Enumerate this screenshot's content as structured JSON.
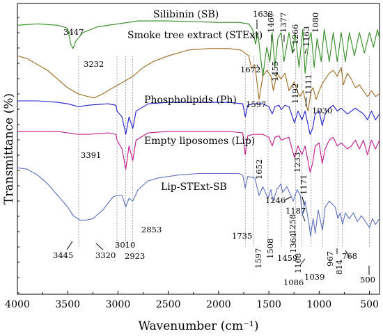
{
  "chart_data": {
    "type": "line",
    "xlabel": "Wavenumber (cm⁻¹)",
    "ylabel": "Transmittance (%)",
    "xlim": [
      4000,
      400
    ],
    "x_reversed": true,
    "xticks": [
      4000,
      3500,
      3000,
      2500,
      2000,
      1500,
      1000,
      500
    ],
    "y_tick_labels": false,
    "grid": false,
    "series": [
      {
        "name": "Silibinin (SB)",
        "color": "#2e8b1f",
        "baseline": 0.08,
        "points": [
          [
            4000,
            0.075
          ],
          [
            3800,
            0.07
          ],
          [
            3600,
            0.075
          ],
          [
            3500,
            0.085
          ],
          [
            3470,
            0.14
          ],
          [
            3447,
            0.155
          ],
          [
            3420,
            0.13
          ],
          [
            3350,
            0.1
          ],
          [
            3200,
            0.08
          ],
          [
            3000,
            0.07
          ],
          [
            2800,
            0.06
          ],
          [
            2500,
            0.06
          ],
          [
            2000,
            0.065
          ],
          [
            1800,
            0.065
          ],
          [
            1700,
            0.07
          ],
          [
            1660,
            0.09
          ],
          [
            1632,
            0.14
          ],
          [
            1610,
            0.1
          ],
          [
            1560,
            0.25
          ],
          [
            1520,
            0.15
          ],
          [
            1490,
            0.2
          ],
          [
            1467,
            0.1
          ],
          [
            1440,
            0.22
          ],
          [
            1410,
            0.12
          ],
          [
            1377,
            0.1
          ],
          [
            1350,
            0.2
          ],
          [
            1300,
            0.1
          ],
          [
            1266,
            0.17
          ],
          [
            1240,
            0.1
          ],
          [
            1200,
            0.22
          ],
          [
            1163,
            0.09
          ],
          [
            1140,
            0.24
          ],
          [
            1100,
            0.12
          ],
          [
            1080,
            0.1
          ],
          [
            1050,
            0.22
          ],
          [
            1020,
            0.12
          ],
          [
            980,
            0.2
          ],
          [
            950,
            0.09
          ],
          [
            900,
            0.2
          ],
          [
            860,
            0.1
          ],
          [
            820,
            0.2
          ],
          [
            780,
            0.1
          ],
          [
            740,
            0.2
          ],
          [
            700,
            0.1
          ],
          [
            650,
            0.18
          ],
          [
            600,
            0.1
          ],
          [
            550,
            0.17
          ],
          [
            500,
            0.1
          ],
          [
            460,
            0.15
          ],
          [
            420,
            0.09
          ],
          [
            400,
            0.12
          ]
        ]
      },
      {
        "name": "Smoke tree extract (STExt)",
        "color": "#9b6a1f",
        "baseline": 0.16,
        "points": [
          [
            4000,
            0.18
          ],
          [
            3900,
            0.19
          ],
          [
            3800,
            0.21
          ],
          [
            3700,
            0.23
          ],
          [
            3600,
            0.26
          ],
          [
            3500,
            0.29
          ],
          [
            3400,
            0.31
          ],
          [
            3300,
            0.32
          ],
          [
            3232,
            0.325
          ],
          [
            3150,
            0.31
          ],
          [
            3050,
            0.29
          ],
          [
            2950,
            0.27
          ],
          [
            2850,
            0.25
          ],
          [
            2750,
            0.22
          ],
          [
            2650,
            0.2
          ],
          [
            2500,
            0.18
          ],
          [
            2300,
            0.16
          ],
          [
            2100,
            0.155
          ],
          [
            1900,
            0.155
          ],
          [
            1780,
            0.16
          ],
          [
            1700,
            0.18
          ],
          [
            1672,
            0.225
          ],
          [
            1640,
            0.21
          ],
          [
            1597,
            0.33
          ],
          [
            1560,
            0.25
          ],
          [
            1520,
            0.23
          ],
          [
            1480,
            0.25
          ],
          [
            1455,
            0.3
          ],
          [
            1420,
            0.24
          ],
          [
            1380,
            0.26
          ],
          [
            1340,
            0.24
          ],
          [
            1300,
            0.3
          ],
          [
            1250,
            0.27
          ],
          [
            1220,
            0.3
          ],
          [
            1192,
            0.32
          ],
          [
            1160,
            0.3
          ],
          [
            1111,
            0.37
          ],
          [
            1080,
            0.3
          ],
          [
            1060,
            0.29
          ],
          [
            1030,
            0.33
          ],
          [
            1000,
            0.3
          ],
          [
            960,
            0.27
          ],
          [
            900,
            0.24
          ],
          [
            860,
            0.23
          ],
          [
            820,
            0.25
          ],
          [
            780,
            0.22
          ],
          [
            760,
            0.28
          ],
          [
            720,
            0.24
          ],
          [
            680,
            0.26
          ],
          [
            640,
            0.29
          ],
          [
            600,
            0.28
          ],
          [
            560,
            0.3
          ],
          [
            520,
            0.32
          ],
          [
            480,
            0.3
          ],
          [
            440,
            0.32
          ],
          [
            400,
            0.31
          ]
        ]
      },
      {
        "name": "Phospholipids (Ph)",
        "color": "#1c1ccf",
        "baseline": 0.34,
        "points": [
          [
            4000,
            0.335
          ],
          [
            3800,
            0.335
          ],
          [
            3600,
            0.34
          ],
          [
            3500,
            0.345
          ],
          [
            3391,
            0.355
          ],
          [
            3300,
            0.35
          ],
          [
            3100,
            0.345
          ],
          [
            3020,
            0.35
          ],
          [
            3010,
            0.37
          ],
          [
            2960,
            0.39
          ],
          [
            2923,
            0.45
          ],
          [
            2890,
            0.39
          ],
          [
            2853,
            0.43
          ],
          [
            2820,
            0.37
          ],
          [
            2700,
            0.345
          ],
          [
            2500,
            0.34
          ],
          [
            2200,
            0.34
          ],
          [
            1900,
            0.34
          ],
          [
            1760,
            0.345
          ],
          [
            1735,
            0.39
          ],
          [
            1710,
            0.35
          ],
          [
            1652,
            0.345
          ],
          [
            1560,
            0.345
          ],
          [
            1500,
            0.355
          ],
          [
            1467,
            0.38
          ],
          [
            1440,
            0.355
          ],
          [
            1400,
            0.35
          ],
          [
            1378,
            0.365
          ],
          [
            1340,
            0.35
          ],
          [
            1300,
            0.355
          ],
          [
            1246,
            0.41
          ],
          [
            1210,
            0.37
          ],
          [
            1171,
            0.4
          ],
          [
            1140,
            0.37
          ],
          [
            1090,
            0.45
          ],
          [
            1065,
            0.43
          ],
          [
            1040,
            0.38
          ],
          [
            1000,
            0.37
          ],
          [
            970,
            0.42
          ],
          [
            940,
            0.38
          ],
          [
            900,
            0.36
          ],
          [
            860,
            0.35
          ],
          [
            820,
            0.37
          ],
          [
            780,
            0.36
          ],
          [
            720,
            0.38
          ],
          [
            680,
            0.37
          ],
          [
            640,
            0.36
          ],
          [
            600,
            0.37
          ],
          [
            560,
            0.38
          ],
          [
            520,
            0.4
          ],
          [
            480,
            0.37
          ],
          [
            440,
            0.4
          ],
          [
            400,
            0.38
          ]
        ]
      },
      {
        "name": "Empty liposomes (Lip)",
        "color": "#c0188a",
        "baseline": 0.44,
        "points": [
          [
            4000,
            0.44
          ],
          [
            3800,
            0.44
          ],
          [
            3600,
            0.44
          ],
          [
            3500,
            0.445
          ],
          [
            3400,
            0.45
          ],
          [
            3300,
            0.45
          ],
          [
            3100,
            0.445
          ],
          [
            3020,
            0.45
          ],
          [
            3010,
            0.47
          ],
          [
            2960,
            0.5
          ],
          [
            2923,
            0.57
          ],
          [
            2890,
            0.49
          ],
          [
            2853,
            0.54
          ],
          [
            2820,
            0.47
          ],
          [
            2700,
            0.445
          ],
          [
            2500,
            0.44
          ],
          [
            2200,
            0.44
          ],
          [
            1900,
            0.44
          ],
          [
            1760,
            0.445
          ],
          [
            1735,
            0.52
          ],
          [
            1710,
            0.455
          ],
          [
            1652,
            0.45
          ],
          [
            1560,
            0.45
          ],
          [
            1500,
            0.46
          ],
          [
            1467,
            0.49
          ],
          [
            1440,
            0.46
          ],
          [
            1400,
            0.455
          ],
          [
            1378,
            0.47
          ],
          [
            1300,
            0.46
          ],
          [
            1246,
            0.53
          ],
          [
            1210,
            0.49
          ],
          [
            1171,
            0.52
          ],
          [
            1140,
            0.49
          ],
          [
            1090,
            0.58
          ],
          [
            1065,
            0.55
          ],
          [
            1040,
            0.49
          ],
          [
            1000,
            0.48
          ],
          [
            970,
            0.55
          ],
          [
            940,
            0.5
          ],
          [
            900,
            0.47
          ],
          [
            860,
            0.46
          ],
          [
            820,
            0.49
          ],
          [
            780,
            0.48
          ],
          [
            720,
            0.5
          ],
          [
            680,
            0.49
          ],
          [
            640,
            0.47
          ],
          [
            600,
            0.5
          ],
          [
            560,
            0.47
          ],
          [
            520,
            0.52
          ],
          [
            480,
            0.47
          ],
          [
            440,
            0.5
          ],
          [
            400,
            0.47
          ]
        ]
      },
      {
        "name": "Lip-STExt-SB",
        "color": "#5b6dbf",
        "baseline": 0.57,
        "points": [
          [
            4000,
            0.565
          ],
          [
            3900,
            0.57
          ],
          [
            3800,
            0.59
          ],
          [
            3700,
            0.62
          ],
          [
            3600,
            0.66
          ],
          [
            3500,
            0.7
          ],
          [
            3445,
            0.73
          ],
          [
            3380,
            0.745
          ],
          [
            3320,
            0.745
          ],
          [
            3250,
            0.74
          ],
          [
            3150,
            0.71
          ],
          [
            3050,
            0.665
          ],
          [
            3010,
            0.66
          ],
          [
            2960,
            0.66
          ],
          [
            2923,
            0.7
          ],
          [
            2890,
            0.67
          ],
          [
            2853,
            0.68
          ],
          [
            2800,
            0.64
          ],
          [
            2700,
            0.61
          ],
          [
            2600,
            0.6
          ],
          [
            2400,
            0.59
          ],
          [
            2200,
            0.585
          ],
          [
            2000,
            0.585
          ],
          [
            1800,
            0.585
          ],
          [
            1760,
            0.59
          ],
          [
            1735,
            0.635
          ],
          [
            1710,
            0.595
          ],
          [
            1640,
            0.6
          ],
          [
            1597,
            0.66
          ],
          [
            1560,
            0.63
          ],
          [
            1508,
            0.67
          ],
          [
            1480,
            0.64
          ],
          [
            1459,
            0.68
          ],
          [
            1420,
            0.64
          ],
          [
            1380,
            0.62
          ],
          [
            1364,
            0.65
          ],
          [
            1320,
            0.63
          ],
          [
            1258,
            0.68
          ],
          [
            1220,
            0.64
          ],
          [
            1187,
            0.66
          ],
          [
            1168,
            0.73
          ],
          [
            1140,
            0.68
          ],
          [
            1100,
            0.76
          ],
          [
            1086,
            0.8
          ],
          [
            1060,
            0.74
          ],
          [
            1039,
            0.79
          ],
          [
            1010,
            0.71
          ],
          [
            967,
            0.78
          ],
          [
            940,
            0.7
          ],
          [
            900,
            0.68
          ],
          [
            870,
            0.69
          ],
          [
            840,
            0.7
          ],
          [
            814,
            0.74
          ],
          [
            790,
            0.72
          ],
          [
            768,
            0.76
          ],
          [
            740,
            0.72
          ],
          [
            700,
            0.74
          ],
          [
            660,
            0.72
          ],
          [
            620,
            0.75
          ],
          [
            580,
            0.73
          ],
          [
            540,
            0.75
          ],
          [
            500,
            0.77
          ],
          [
            470,
            0.74
          ],
          [
            440,
            0.76
          ],
          [
            400,
            0.74
          ]
        ]
      }
    ],
    "guide_lines": [
      3391,
      3010,
      2923,
      2853,
      1735,
      1652,
      1508,
      1377,
      1233,
      1171,
      1080,
      967,
      814,
      768,
      500
    ],
    "peak_labels": [
      "1632",
      "1467",
      "1377",
      "1266",
      "1163",
      "1080",
      "3447",
      "3232",
      "1672",
      "1597",
      "1455",
      "1192",
      "1111",
      "1030",
      "3391",
      "1652",
      "1233",
      "1246",
      "1171",
      "3445",
      "3320",
      "3010",
      "2923",
      "2853",
      "1735",
      "1597",
      "1508",
      "1459",
      "1364",
      "1258",
      "1187",
      "1168",
      "1086",
      "1039",
      "967",
      "814",
      "768",
      "500"
    ]
  }
}
